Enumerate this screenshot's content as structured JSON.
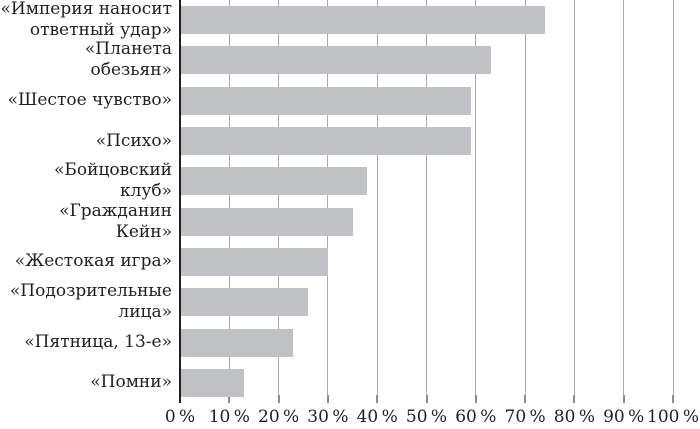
{
  "chart_data": {
    "type": "bar",
    "orientation": "horizontal",
    "categories": [
      "«Империя наносит\nответный удар»",
      "«Планета обезьян»",
      "«Шестое чувство»",
      "«Психо»",
      "«Бойцовский клуб»",
      "«Гражданин Кейн»",
      "«Жестокая игра»",
      "«Подозрительные\nлица»",
      "«Пятница, 13-е»",
      "«Помни»"
    ],
    "values": [
      74,
      63,
      59,
      59,
      38,
      35,
      30,
      26,
      23,
      13
    ],
    "unit": "%",
    "xlim": [
      0,
      100
    ],
    "x_tick_values": [
      0,
      10,
      20,
      30,
      40,
      50,
      60,
      70,
      80,
      90,
      100
    ],
    "x_tick_labels": [
      "0 %",
      "10 %",
      "20 %",
      "30 %",
      "40 %",
      "50 %",
      "60 %",
      "70 %",
      "80 %",
      "90 %",
      "100 %"
    ],
    "grid": true,
    "legend": false,
    "title": "",
    "xlabel": "",
    "ylabel": "",
    "colors": {
      "bar": "#bfc1c4",
      "gridline": "#a8a8a8",
      "tick": "#8c8c8c",
      "axis": "#1f1f1f",
      "text": "#1f1f1f"
    }
  }
}
